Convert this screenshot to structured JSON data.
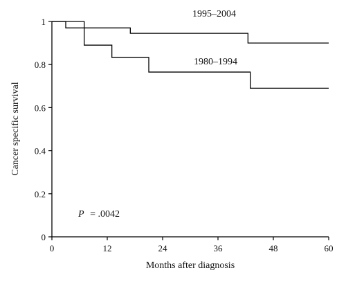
{
  "chart_data": {
    "type": "line",
    "step": true,
    "xlabel": "Months after diagnosis",
    "ylabel": "Cancer specific survival",
    "xlim": [
      0,
      60
    ],
    "ylim": [
      0,
      1
    ],
    "x_ticks": [
      0,
      12,
      24,
      36,
      48,
      60
    ],
    "y_ticks": [
      0,
      0.2,
      0.4,
      0.6,
      0.8,
      1
    ],
    "x_tick_labels": [
      "0",
      "12",
      "24",
      "36",
      "48",
      "60"
    ],
    "y_tick_labels": [
      "0",
      "0.2",
      "0.4",
      "0.6",
      "0.8",
      "1"
    ],
    "grid": false,
    "series": [
      {
        "name": "1995–2004",
        "x": [
          0,
          3,
          17,
          42.5,
          60
        ],
        "y": [
          1,
          0.97,
          0.945,
          0.9,
          0.9
        ]
      },
      {
        "name": "1980–1994",
        "x": [
          0,
          7,
          13,
          21,
          43,
          60
        ],
        "y": [
          1,
          0.89,
          0.833,
          0.765,
          0.69,
          0.69
        ]
      }
    ],
    "annotation": {
      "p_symbol": "P",
      "p_value": "= .0042"
    }
  }
}
